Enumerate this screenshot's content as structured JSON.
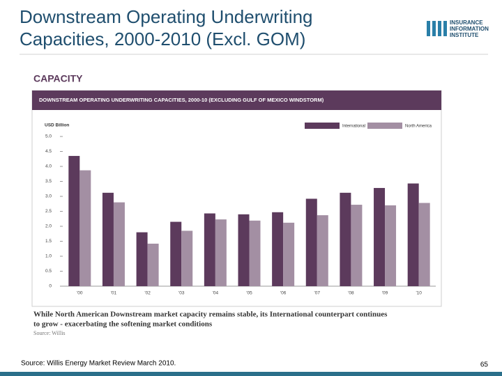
{
  "slide": {
    "title_lines": [
      "Downstream Operating Underwriting",
      "Capacities, 2000-2010 (Excl. GOM)"
    ],
    "logo_lines": [
      "INSURANCE",
      "INFORMATION",
      "INSTITUTE"
    ],
    "source": "Source: Willis Energy Market Review March 2010.",
    "page_number": "65"
  },
  "chart_data": {
    "type": "bar",
    "section": "CAPACITY",
    "title": "DOWNSTREAM OPERATING UNDERWRITING CAPACITIES, 2000-10 (EXCLUDING GULF OF MEXICO WINDSTORM)",
    "y_label": "USD Billion",
    "categories": [
      "'00",
      "'01",
      "'02",
      "'03",
      "'04",
      "'05",
      "'06",
      "'07",
      "'08",
      "'09",
      "'10"
    ],
    "series": [
      {
        "name": "International",
        "color": "#5c3a5c",
        "values": [
          4.35,
          3.12,
          1.8,
          2.15,
          2.43,
          2.4,
          2.47,
          2.92,
          3.12,
          3.28,
          3.43
        ]
      },
      {
        "name": "North America",
        "color": "#a38fa3",
        "values": [
          3.87,
          2.8,
          1.42,
          1.85,
          2.23,
          2.19,
          2.12,
          2.37,
          2.72,
          2.7,
          2.78
        ]
      }
    ],
    "ylim": [
      0,
      5
    ],
    "yticks": [
      0,
      0.5,
      {
        "value": 1,
        "label": "1.0"
      },
      1.5,
      {
        "value": 2,
        "label": "2.0"
      },
      2.5,
      {
        "value": 3,
        "label": "3.0"
      },
      3.5,
      {
        "value": 4,
        "label": "4.0"
      },
      4.5,
      {
        "value": 5,
        "label": "5.0"
      }
    ],
    "caption_lines": [
      "While North American Downstream market capacity remains stable, its International counterpart continues",
      "to grow - exacerbating the softening market conditions"
    ],
    "source": "Source: Willis"
  }
}
